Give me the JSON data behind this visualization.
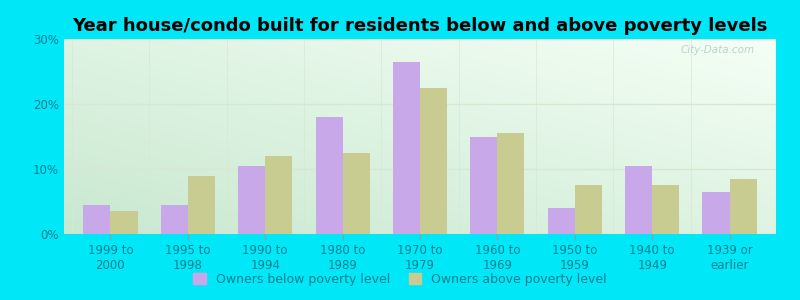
{
  "title": "Year house/condo built for residents below and above poverty levels",
  "categories": [
    "1999 to\n2000",
    "1995 to\n1998",
    "1990 to\n1994",
    "1980 to\n1989",
    "1970 to\n1979",
    "1960 to\n1969",
    "1950 to\n1959",
    "1940 to\n1949",
    "1939 or\nearlier"
  ],
  "below_poverty": [
    4.5,
    4.5,
    10.5,
    18.0,
    26.5,
    15.0,
    4.0,
    10.5,
    6.5
  ],
  "above_poverty": [
    3.5,
    9.0,
    12.0,
    12.5,
    22.5,
    15.5,
    7.5,
    7.5,
    8.5
  ],
  "below_color": "#c8a8e8",
  "above_color": "#c8cc90",
  "ylim": [
    0,
    30
  ],
  "yticks": [
    0,
    10,
    20,
    30
  ],
  "ytick_labels": [
    "0%",
    "10%",
    "20%",
    "30%"
  ],
  "bar_width": 0.35,
  "bg_top_left": "#c8e8d0",
  "bg_bottom_right": "#f0fdf0",
  "outer_bg": "#00e8f8",
  "grid_color": "#d8e8d0",
  "title_fontsize": 13,
  "tick_fontsize": 8.5,
  "legend_fontsize": 9,
  "tick_color": "#008090",
  "legend_below_label": "Owners below poverty level",
  "legend_above_label": "Owners above poverty level",
  "watermark": "City-Data.com"
}
